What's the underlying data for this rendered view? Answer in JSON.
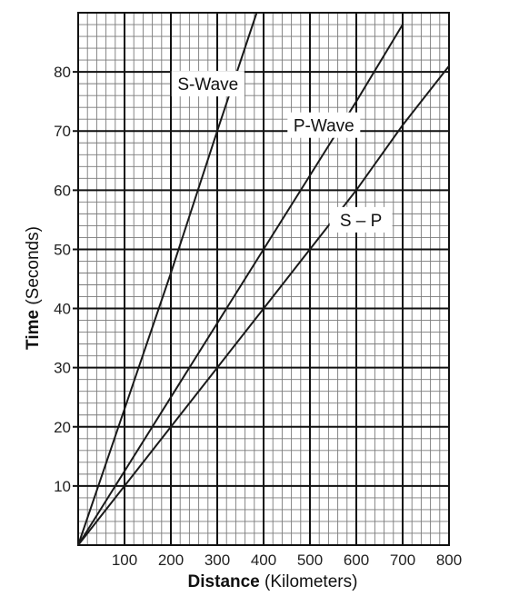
{
  "chart_data": {
    "type": "line",
    "title": "",
    "xlabel": {
      "bold": "Distance",
      "rest": " (Kilometers)"
    },
    "ylabel": {
      "bold": "Time",
      "rest": " (Seconds)"
    },
    "xlim": [
      0,
      800
    ],
    "ylim": [
      0,
      90
    ],
    "x_ticks": [
      100,
      200,
      300,
      400,
      500,
      600,
      700,
      800
    ],
    "y_ticks": [
      10,
      20,
      30,
      40,
      50,
      60,
      70,
      80
    ],
    "grid": true,
    "grid_minor_x_step": 20,
    "grid_minor_y_step": 2,
    "line_color": "#1a1a1a",
    "series": [
      {
        "name": "S-Wave",
        "x": [
          0,
          100,
          200,
          300,
          385
        ],
        "y": [
          0,
          23,
          46,
          70,
          90
        ]
      },
      {
        "name": "P-Wave",
        "x": [
          0,
          100,
          200,
          300,
          400,
          500,
          600,
          700
        ],
        "y": [
          0,
          12.5,
          25,
          37.5,
          50,
          62.5,
          75,
          88
        ]
      },
      {
        "name": "S – P",
        "x": [
          0,
          100,
          200,
          300,
          400,
          500,
          600,
          700,
          800
        ],
        "y": [
          0,
          10,
          20,
          30,
          40,
          50,
          60,
          71,
          81
        ]
      }
    ]
  }
}
